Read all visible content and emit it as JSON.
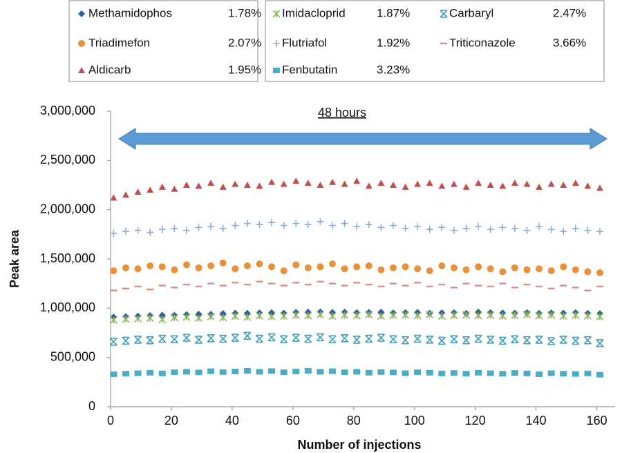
{
  "chart_data": {
    "type": "scatter",
    "annotation": "48 hours",
    "x_label": "Number of injections",
    "y_label": "Peak area",
    "x": [
      1,
      5,
      9,
      13,
      17,
      21,
      25,
      29,
      33,
      37,
      41,
      45,
      49,
      53,
      57,
      61,
      65,
      69,
      73,
      77,
      81,
      85,
      89,
      93,
      97,
      101,
      105,
      109,
      113,
      117,
      121,
      125,
      129,
      133,
      137,
      141,
      145,
      149,
      153,
      157,
      161
    ],
    "xlim": [
      0,
      166
    ],
    "xticks": [
      0,
      20,
      40,
      60,
      80,
      100,
      120,
      140,
      160
    ],
    "ylim": [
      0,
      3000000
    ],
    "yticks": [
      0,
      {
        "value": 500000,
        "label": "500,000"
      },
      {
        "value": 1000000,
        "label": "1,000,000"
      },
      {
        "value": 1500000,
        "label": "1,500,000"
      },
      {
        "value": 2000000,
        "label": "2,000,000"
      },
      {
        "value": 2500000,
        "label": "2,500,000"
      },
      {
        "value": 3000000,
        "label": "3,000,000"
      }
    ],
    "series": [
      {
        "name": "Methamidophos",
        "rsd": "1.78%",
        "color": "#2e5fa0",
        "marker": "diamond",
        "values": [
          910000,
          915000,
          920000,
          925000,
          930000,
          928000,
          935000,
          940000,
          938000,
          945000,
          950000,
          948000,
          952000,
          955000,
          950000,
          958000,
          960000,
          962000,
          958000,
          960000,
          955000,
          958000,
          960000,
          952000,
          955000,
          958000,
          950000,
          953000,
          955000,
          948000,
          960000,
          955000,
          952000,
          950000,
          955000,
          948000,
          952000,
          950000,
          955000,
          948000,
          945000
        ]
      },
      {
        "name": "Triadimefon",
        "rsd": "2.07%",
        "color": "#e8913a",
        "marker": "circle",
        "values": [
          1380000,
          1410000,
          1400000,
          1430000,
          1420000,
          1390000,
          1440000,
          1410000,
          1430000,
          1460000,
          1400000,
          1430000,
          1450000,
          1420000,
          1380000,
          1440000,
          1410000,
          1420000,
          1450000,
          1400000,
          1420000,
          1430000,
          1390000,
          1410000,
          1420000,
          1400000,
          1380000,
          1430000,
          1410000,
          1390000,
          1420000,
          1400000,
          1370000,
          1410000,
          1390000,
          1400000,
          1380000,
          1420000,
          1390000,
          1370000,
          1360000
        ]
      },
      {
        "name": "Aldicarb",
        "rsd": "1.95%",
        "color": "#c0504d",
        "marker": "triangle",
        "values": [
          2120000,
          2150000,
          2180000,
          2200000,
          2230000,
          2210000,
          2250000,
          2240000,
          2270000,
          2230000,
          2260000,
          2250000,
          2240000,
          2280000,
          2260000,
          2290000,
          2270000,
          2250000,
          2280000,
          2260000,
          2290000,
          2240000,
          2270000,
          2250000,
          2230000,
          2260000,
          2270000,
          2240000,
          2260000,
          2230000,
          2270000,
          2250000,
          2240000,
          2270000,
          2260000,
          2230000,
          2260000,
          2250000,
          2270000,
          2240000,
          2220000
        ]
      },
      {
        "name": "Imidacloprid",
        "rsd": "1.87%",
        "color": "#8db55a",
        "marker": "star",
        "values": [
          880000,
          890000,
          895000,
          900000,
          885000,
          905000,
          910000,
          900000,
          915000,
          905000,
          920000,
          910000,
          925000,
          915000,
          920000,
          930000,
          925000,
          935000,
          920000,
          930000,
          925000,
          935000,
          920000,
          928000,
          930000,
          925000,
          935000,
          920000,
          928000,
          932000,
          925000,
          930000,
          920000,
          928000,
          935000,
          925000,
          930000,
          920000,
          928000,
          922000,
          915000
        ]
      },
      {
        "name": "Flutriafol",
        "rsd": "1.92%",
        "color": "#8fa8d8",
        "marker": "plus",
        "values": [
          1760000,
          1780000,
          1790000,
          1770000,
          1800000,
          1810000,
          1790000,
          1820000,
          1830000,
          1810000,
          1840000,
          1860000,
          1850000,
          1870000,
          1840000,
          1860000,
          1850000,
          1880000,
          1840000,
          1860000,
          1830000,
          1850000,
          1820000,
          1840000,
          1810000,
          1830000,
          1800000,
          1820000,
          1790000,
          1810000,
          1830000,
          1800000,
          1820000,
          1810000,
          1790000,
          1830000,
          1800000,
          1780000,
          1810000,
          1790000,
          1780000
        ]
      },
      {
        "name": "Fenbutatin",
        "rsd": "3.23%",
        "color": "#4bacc6",
        "marker": "square",
        "values": [
          330000,
          335000,
          340000,
          345000,
          338000,
          350000,
          355000,
          348000,
          360000,
          352000,
          358000,
          365000,
          355000,
          362000,
          350000,
          358000,
          365000,
          355000,
          360000,
          350000,
          355000,
          345000,
          352000,
          348000,
          340000,
          350000,
          345000,
          338000,
          342000,
          335000,
          345000,
          340000,
          335000,
          342000,
          338000,
          330000,
          340000,
          335000,
          332000,
          338000,
          325000
        ]
      },
      {
        "name": "Carbaryl",
        "rsd": "2.47%",
        "color": "#3f9fb5",
        "marker": "cross",
        "values": [
          660000,
          670000,
          680000,
          675000,
          690000,
          685000,
          700000,
          680000,
          695000,
          690000,
          700000,
          720000,
          690000,
          705000,
          685000,
          700000,
          690000,
          705000,
          685000,
          695000,
          680000,
          690000,
          700000,
          685000,
          675000,
          690000,
          680000,
          670000,
          685000,
          675000,
          690000,
          680000,
          670000,
          685000,
          675000,
          680000,
          665000,
          680000,
          670000,
          675000,
          645000
        ]
      },
      {
        "name": "Triticonazole",
        "rsd": "3.66%",
        "color": "#e08a8a",
        "marker": "dash",
        "values": [
          1180000,
          1200000,
          1220000,
          1190000,
          1230000,
          1210000,
          1240000,
          1220000,
          1250000,
          1230000,
          1260000,
          1240000,
          1270000,
          1250000,
          1230000,
          1260000,
          1240000,
          1270000,
          1250000,
          1230000,
          1260000,
          1240000,
          1220000,
          1250000,
          1230000,
          1260000,
          1220000,
          1240000,
          1210000,
          1250000,
          1230000,
          1220000,
          1250000,
          1210000,
          1240000,
          1220000,
          1200000,
          1230000,
          1210000,
          1180000,
          1220000
        ]
      }
    ]
  }
}
